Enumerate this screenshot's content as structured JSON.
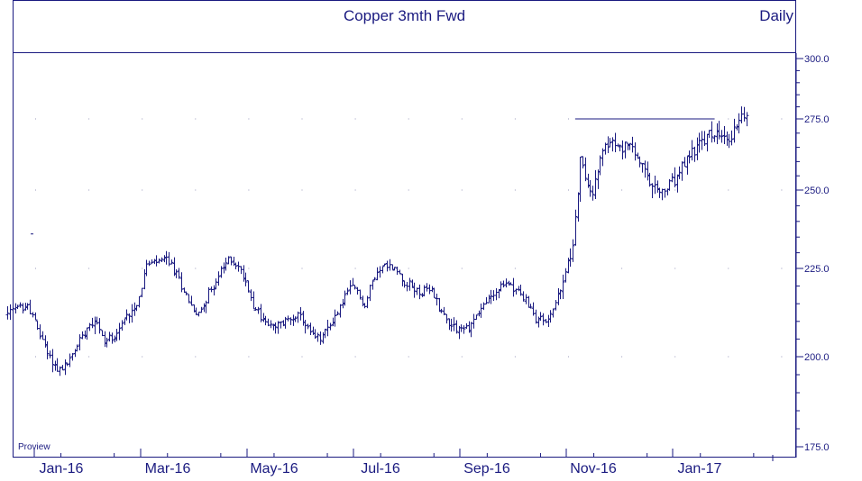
{
  "chart_data": {
    "type": "ohlc",
    "title": "Copper 3mth Fwd",
    "period": "Daily",
    "source_label": "Proview",
    "y_ticks": [
      175.0,
      200.0,
      225.0,
      250.0,
      275.0,
      300.0
    ],
    "y_tick_labels": [
      "175.0",
      "200.0",
      "225.0",
      "250.0",
      "275.0",
      "300.0"
    ],
    "ylim": [
      172,
      308
    ],
    "x_tick_labels": [
      "Jan-16",
      "Mar-16",
      "May-16",
      "Jul-16",
      "Sep-16",
      "Nov-16",
      "Jan-17"
    ],
    "resistance_line": {
      "value": 275,
      "from_month": 10.15,
      "to_month": 12.7
    },
    "monthly_path": [
      {
        "m": -0.5,
        "v": 212
      },
      {
        "m": -0.3,
        "v": 214
      },
      {
        "m": -0.1,
        "v": 214
      },
      {
        "m": 0.05,
        "v": 208
      },
      {
        "m": 0.2,
        "v": 203
      },
      {
        "m": 0.35,
        "v": 198
      },
      {
        "m": 0.5,
        "v": 196
      },
      {
        "m": 0.7,
        "v": 200
      },
      {
        "m": 0.85,
        "v": 205
      },
      {
        "m": 1.0,
        "v": 209
      },
      {
        "m": 1.15,
        "v": 211
      },
      {
        "m": 1.3,
        "v": 204
      },
      {
        "m": 1.55,
        "v": 207
      },
      {
        "m": 1.75,
        "v": 212
      },
      {
        "m": 1.95,
        "v": 216
      },
      {
        "m": 2.1,
        "v": 226
      },
      {
        "m": 2.3,
        "v": 227
      },
      {
        "m": 2.5,
        "v": 228
      },
      {
        "m": 2.7,
        "v": 222
      },
      {
        "m": 2.9,
        "v": 216
      },
      {
        "m": 3.05,
        "v": 211
      },
      {
        "m": 3.2,
        "v": 216
      },
      {
        "m": 3.35,
        "v": 220
      },
      {
        "m": 3.5,
        "v": 224
      },
      {
        "m": 3.65,
        "v": 228
      },
      {
        "m": 3.8,
        "v": 226
      },
      {
        "m": 3.95,
        "v": 222
      },
      {
        "m": 4.1,
        "v": 215
      },
      {
        "m": 4.3,
        "v": 210
      },
      {
        "m": 4.5,
        "v": 208
      },
      {
        "m": 4.7,
        "v": 210
      },
      {
        "m": 4.9,
        "v": 212
      },
      {
        "m": 5.05,
        "v": 210
      },
      {
        "m": 5.2,
        "v": 206
      },
      {
        "m": 5.35,
        "v": 205
      },
      {
        "m": 5.5,
        "v": 208
      },
      {
        "m": 5.7,
        "v": 213
      },
      {
        "m": 5.85,
        "v": 218
      },
      {
        "m": 6.0,
        "v": 220
      },
      {
        "m": 6.1,
        "v": 217
      },
      {
        "m": 6.2,
        "v": 214
      },
      {
        "m": 6.3,
        "v": 220
      },
      {
        "m": 6.45,
        "v": 225
      },
      {
        "m": 6.6,
        "v": 226
      },
      {
        "m": 6.75,
        "v": 225
      },
      {
        "m": 6.9,
        "v": 222
      },
      {
        "m": 7.05,
        "v": 220
      },
      {
        "m": 7.25,
        "v": 218
      },
      {
        "m": 7.45,
        "v": 219
      },
      {
        "m": 7.6,
        "v": 214
      },
      {
        "m": 7.75,
        "v": 210
      },
      {
        "m": 7.95,
        "v": 208
      },
      {
        "m": 8.15,
        "v": 208
      },
      {
        "m": 8.3,
        "v": 212
      },
      {
        "m": 8.5,
        "v": 216
      },
      {
        "m": 8.7,
        "v": 219
      },
      {
        "m": 8.9,
        "v": 221
      },
      {
        "m": 9.05,
        "v": 219
      },
      {
        "m": 9.25,
        "v": 215
      },
      {
        "m": 9.4,
        "v": 211
      },
      {
        "m": 9.6,
        "v": 210
      },
      {
        "m": 9.75,
        "v": 214
      },
      {
        "m": 9.9,
        "v": 220
      },
      {
        "m": 10.05,
        "v": 228
      },
      {
        "m": 10.15,
        "v": 240
      },
      {
        "m": 10.25,
        "v": 262
      },
      {
        "m": 10.35,
        "v": 252
      },
      {
        "m": 10.5,
        "v": 250
      },
      {
        "m": 10.6,
        "v": 259
      },
      {
        "m": 10.8,
        "v": 268
      },
      {
        "m": 10.95,
        "v": 264
      },
      {
        "m": 11.1,
        "v": 266
      },
      {
        "m": 11.3,
        "v": 262
      },
      {
        "m": 11.45,
        "v": 256
      },
      {
        "m": 11.6,
        "v": 250
      },
      {
        "m": 11.75,
        "v": 249
      },
      {
        "m": 11.9,
        "v": 251
      },
      {
        "m": 12.05,
        "v": 254
      },
      {
        "m": 12.2,
        "v": 259
      },
      {
        "m": 12.35,
        "v": 264
      },
      {
        "m": 12.5,
        "v": 266
      },
      {
        "m": 12.65,
        "v": 269
      },
      {
        "m": 12.8,
        "v": 270
      },
      {
        "m": 12.95,
        "v": 267
      },
      {
        "m": 13.1,
        "v": 269
      },
      {
        "m": 13.25,
        "v": 278
      },
      {
        "m": 13.4,
        "v": 274
      }
    ]
  }
}
